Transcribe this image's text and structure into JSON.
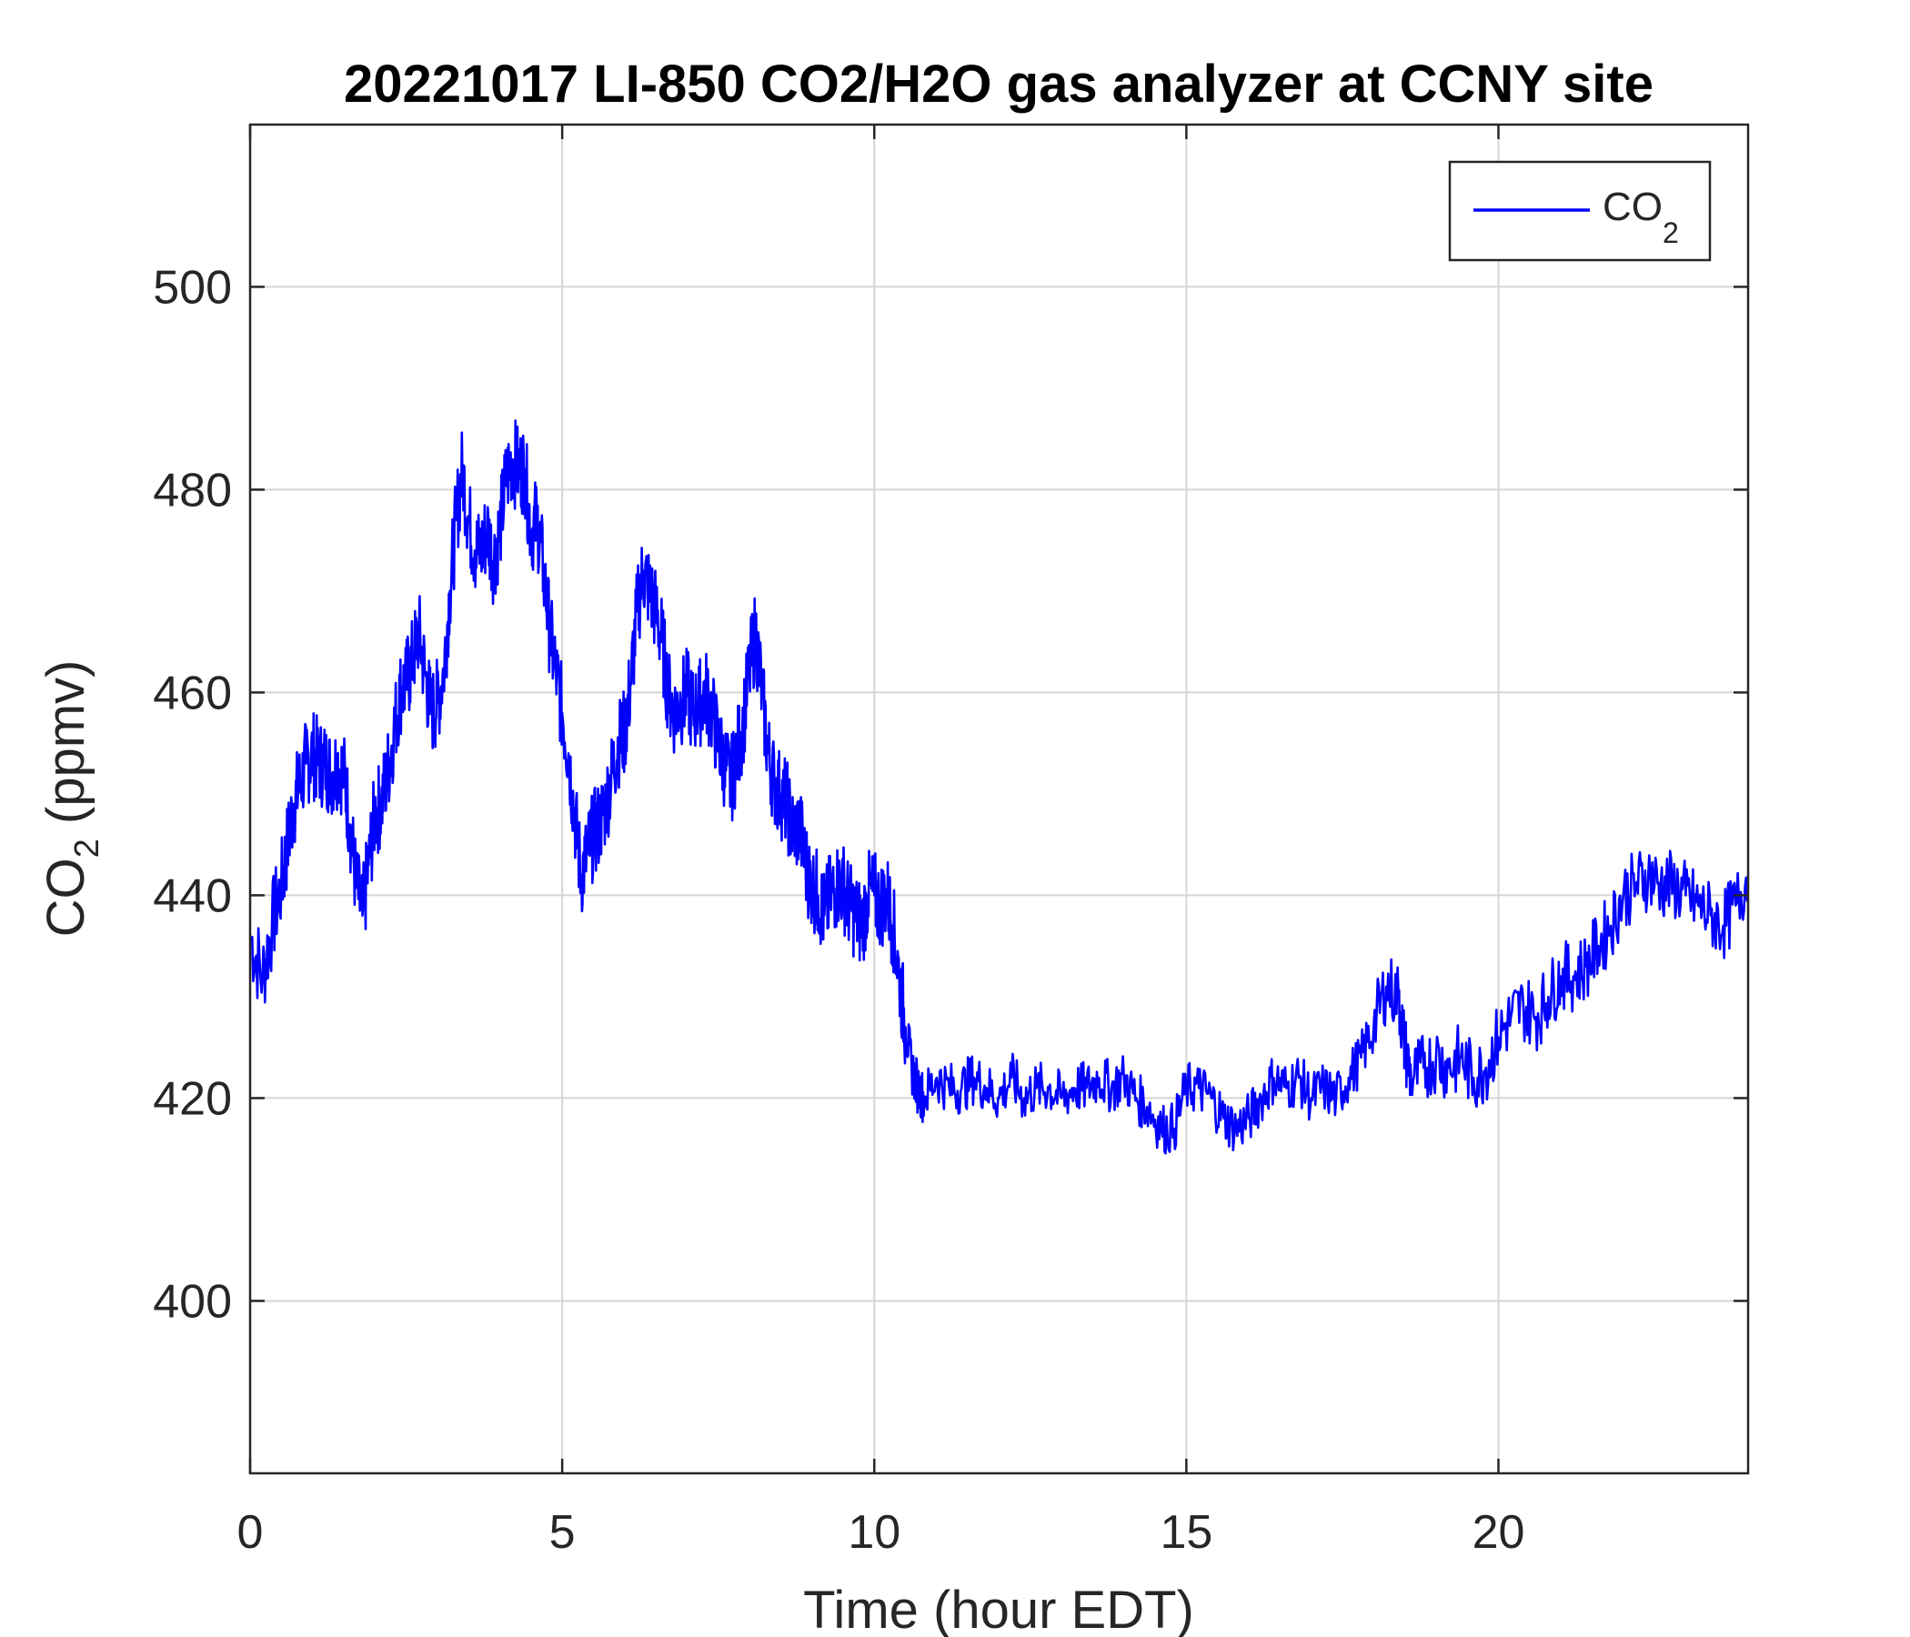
{
  "chart_data": {
    "type": "line",
    "title": "20221017 LI-850 CO2/H2O gas analyzer at CCNY site",
    "xlabel": "Time (hour EDT)",
    "ylabel": {
      "main": "CO",
      "sub": "2",
      "suffix": " (ppmv)"
    },
    "xlim": [
      0,
      24
    ],
    "ylim": [
      383,
      516
    ],
    "xticks": [
      0,
      5,
      10,
      15,
      20
    ],
    "yticks": [
      400,
      420,
      440,
      460,
      480,
      500
    ],
    "grid": true,
    "legend_location": "top-right",
    "series": [
      {
        "name": "CO",
        "name_sub": "2",
        "color": "#0000ff",
        "points": [
          [
            0,
            436
          ],
          [
            0.2,
            432
          ],
          [
            0.35,
            437
          ],
          [
            0.5,
            441
          ],
          [
            0.6,
            445
          ],
          [
            0.7,
            449
          ],
          [
            0.8,
            451
          ],
          [
            0.9,
            453
          ],
          [
            1.0,
            454
          ],
          [
            1.1,
            453
          ],
          [
            1.2,
            453
          ],
          [
            1.3,
            452
          ],
          [
            1.4,
            453
          ],
          [
            1.5,
            452
          ],
          [
            1.6,
            447
          ],
          [
            1.7,
            441
          ],
          [
            1.8,
            438
          ],
          [
            1.9,
            443
          ],
          [
            2.0,
            448
          ],
          [
            2.1,
            449
          ],
          [
            2.2,
            452
          ],
          [
            2.3,
            456
          ],
          [
            2.4,
            460
          ],
          [
            2.5,
            461
          ],
          [
            2.6,
            463
          ],
          [
            2.7,
            466
          ],
          [
            2.8,
            462
          ],
          [
            2.9,
            458
          ],
          [
            3.0,
            459
          ],
          [
            3.1,
            462
          ],
          [
            3.2,
            470
          ],
          [
            3.3,
            477
          ],
          [
            3.4,
            482
          ],
          [
            3.5,
            477
          ],
          [
            3.6,
            474
          ],
          [
            3.7,
            474
          ],
          [
            3.8,
            476
          ],
          [
            3.9,
            473
          ],
          [
            4.0,
            476
          ],
          [
            4.1,
            481
          ],
          [
            4.2,
            483
          ],
          [
            4.3,
            482
          ],
          [
            4.4,
            482
          ],
          [
            4.5,
            476
          ],
          [
            4.6,
            477
          ],
          [
            4.7,
            472
          ],
          [
            4.8,
            466
          ],
          [
            4.9,
            462
          ],
          [
            5.0,
            458
          ],
          [
            5.1,
            454
          ],
          [
            5.2,
            448
          ],
          [
            5.3,
            442
          ],
          [
            5.4,
            444
          ],
          [
            5.5,
            446
          ],
          [
            5.6,
            447
          ],
          [
            5.7,
            449
          ],
          [
            5.8,
            452
          ],
          [
            5.9,
            455
          ],
          [
            6.0,
            456
          ],
          [
            6.1,
            461
          ],
          [
            6.2,
            468
          ],
          [
            6.3,
            472
          ],
          [
            6.4,
            470
          ],
          [
            6.5,
            468
          ],
          [
            6.6,
            465
          ],
          [
            6.7,
            460
          ],
          [
            6.8,
            458
          ],
          [
            6.9,
            459
          ],
          [
            7.0,
            460
          ],
          [
            7.1,
            458
          ],
          [
            7.2,
            459
          ],
          [
            7.3,
            460
          ],
          [
            7.4,
            458
          ],
          [
            7.5,
            455
          ],
          [
            7.6,
            453
          ],
          [
            7.7,
            451
          ],
          [
            7.8,
            454
          ],
          [
            7.9,
            457
          ],
          [
            8.0,
            462
          ],
          [
            8.1,
            466
          ],
          [
            8.2,
            460
          ],
          [
            8.3,
            454
          ],
          [
            8.4,
            451
          ],
          [
            8.5,
            450
          ],
          [
            8.6,
            449
          ],
          [
            8.7,
            446
          ],
          [
            8.8,
            447
          ],
          [
            8.9,
            443
          ],
          [
            9.0,
            441
          ],
          [
            9.1,
            440
          ],
          [
            9.2,
            438
          ],
          [
            9.3,
            440
          ],
          [
            9.4,
            441
          ],
          [
            9.5,
            441
          ],
          [
            9.6,
            439
          ],
          [
            9.7,
            438
          ],
          [
            9.8,
            437
          ],
          [
            9.9,
            440
          ],
          [
            10.0,
            440
          ],
          [
            10.1,
            439
          ],
          [
            10.2,
            440
          ],
          [
            10.3,
            437
          ],
          [
            10.4,
            432
          ],
          [
            10.5,
            427
          ],
          [
            10.6,
            423
          ],
          [
            10.7,
            421
          ],
          [
            10.8,
            420
          ],
          [
            11.0,
            422
          ],
          [
            11.2,
            421
          ],
          [
            11.4,
            421
          ],
          [
            11.6,
            422
          ],
          [
            11.8,
            421
          ],
          [
            12.0,
            420
          ],
          [
            12.2,
            422
          ],
          [
            12.4,
            420
          ],
          [
            12.6,
            421
          ],
          [
            12.8,
            421
          ],
          [
            13.0,
            420
          ],
          [
            13.2,
            421
          ],
          [
            13.4,
            421
          ],
          [
            13.6,
            422
          ],
          [
            13.8,
            421
          ],
          [
            14.0,
            422
          ],
          [
            14.2,
            420
          ],
          [
            14.4,
            419
          ],
          [
            14.6,
            417
          ],
          [
            14.8,
            417
          ],
          [
            15.0,
            421
          ],
          [
            15.2,
            421
          ],
          [
            15.4,
            420
          ],
          [
            15.6,
            418
          ],
          [
            15.8,
            417
          ],
          [
            16.0,
            418
          ],
          [
            16.2,
            420
          ],
          [
            16.4,
            422
          ],
          [
            16.6,
            421
          ],
          [
            16.8,
            422
          ],
          [
            17.0,
            420
          ],
          [
            17.2,
            421
          ],
          [
            17.4,
            420
          ],
          [
            17.6,
            422
          ],
          [
            17.8,
            424
          ],
          [
            18.0,
            427
          ],
          [
            18.2,
            431
          ],
          [
            18.4,
            430
          ],
          [
            18.5,
            425
          ],
          [
            18.6,
            422
          ],
          [
            18.8,
            423
          ],
          [
            19.0,
            424
          ],
          [
            19.2,
            423
          ],
          [
            19.4,
            424
          ],
          [
            19.6,
            422
          ],
          [
            19.8,
            423
          ],
          [
            20.0,
            426
          ],
          [
            20.2,
            428
          ],
          [
            20.4,
            429
          ],
          [
            20.6,
            428
          ],
          [
            20.8,
            430
          ],
          [
            21.0,
            432
          ],
          [
            21.2,
            432
          ],
          [
            21.4,
            433
          ],
          [
            21.6,
            435
          ],
          [
            21.8,
            437
          ],
          [
            22.0,
            440
          ],
          [
            22.2,
            441
          ],
          [
            22.4,
            442
          ],
          [
            22.6,
            441
          ],
          [
            22.8,
            441
          ],
          [
            23.0,
            440
          ],
          [
            23.2,
            439
          ],
          [
            23.4,
            438
          ],
          [
            23.6,
            437
          ],
          [
            23.8,
            439
          ],
          [
            24.0,
            442
          ]
        ]
      }
    ]
  }
}
